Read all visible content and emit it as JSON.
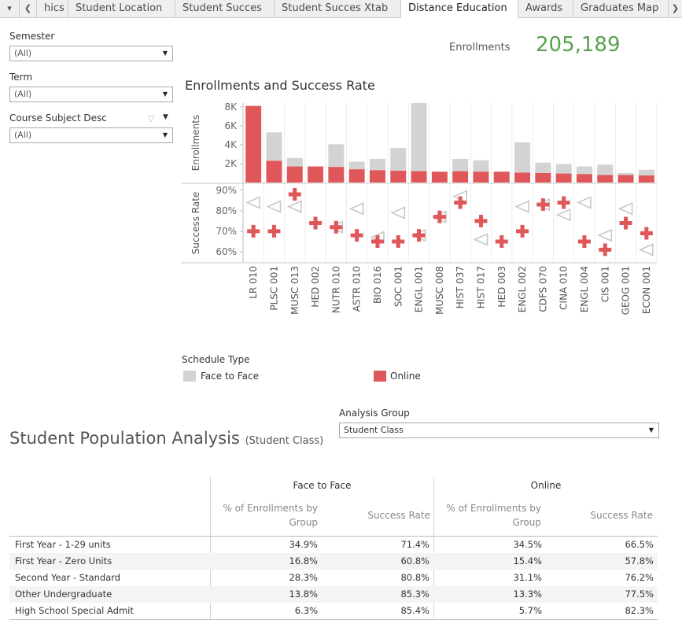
{
  "tabs": {
    "menu_icon": "caret-down-icon",
    "back_icon": "chevron-left-icon",
    "forward_icon": "chevron-right-icon",
    "items": [
      {
        "label": "hics"
      },
      {
        "label": "Student Location"
      },
      {
        "label": "Student Succes"
      },
      {
        "label": "Student Succes Xtab"
      },
      {
        "label": "Distance Education"
      },
      {
        "label": "Awards"
      },
      {
        "label": "Graduates Map"
      }
    ],
    "active": "Distance Education"
  },
  "filters": {
    "semester": {
      "label": "Semester",
      "value": "(All)"
    },
    "term": {
      "label": "Term",
      "value": "(All)"
    },
    "course_subject": {
      "label": "Course Subject Desc",
      "value": "(All)"
    }
  },
  "kpi": {
    "label": "Enrollments",
    "value": "205,189",
    "color": "#59a14f"
  },
  "chart_data": {
    "type": "bar",
    "title": "Enrollments and Success Rate",
    "categories": [
      "LR 010",
      "PLSC 001",
      "MUSC 013",
      "HED 002",
      "NUTR 010",
      "ASTR 010",
      "BIO 016",
      "SOC 001",
      "ENGL 001",
      "MUSC 008",
      "HIST 037",
      "HIST 017",
      "HED 003",
      "ENGL 002",
      "CDFS 070",
      "CINA 010",
      "ENGL 004",
      "CIS 001",
      "GEOG 001",
      "ECON 001"
    ],
    "enrollments": {
      "ylabel": "Enrollments",
      "yticks": [
        "2K",
        "4K",
        "6K",
        "8K"
      ],
      "ylim": [
        0,
        8400
      ],
      "series": [
        {
          "name": "Online",
          "values": [
            8100,
            2300,
            1700,
            1700,
            1650,
            1400,
            1300,
            1250,
            1200,
            1150,
            1200,
            1150,
            1150,
            1050,
            1000,
            950,
            900,
            800,
            800,
            750
          ]
        },
        {
          "name": "Face to Face",
          "values": [
            0,
            3000,
            900,
            0,
            2400,
            800,
            1200,
            2400,
            7200,
            0,
            1300,
            1200,
            0,
            3200,
            1100,
            1000,
            800,
            1100,
            200,
            600
          ]
        }
      ]
    },
    "success_rate": {
      "ylabel": "Success Rate",
      "yticks": [
        "60%",
        "70%",
        "80%",
        "90%"
      ],
      "ylim": [
        55,
        93
      ],
      "series": [
        {
          "name": "Online",
          "marker": "plus",
          "values": [
            70,
            70,
            88,
            74,
            72,
            68,
            65,
            65,
            68,
            77,
            84,
            75,
            65,
            70,
            83,
            84,
            65,
            61,
            74,
            69
          ]
        },
        {
          "name": "Face to Face",
          "marker": "triangle-left",
          "values": [
            84,
            82,
            82,
            null,
            72,
            81,
            67,
            79,
            68,
            77,
            87,
            66,
            null,
            82,
            83,
            78,
            84,
            68,
            81,
            61
          ]
        }
      ]
    }
  },
  "legend": {
    "title": "Schedule Type",
    "items": [
      {
        "label": "Face to Face",
        "color": "#d3d3d3"
      },
      {
        "label": "Online",
        "color": "#e05759"
      }
    ]
  },
  "analysis_group": {
    "label": "Analysis Group",
    "value": "Student Class"
  },
  "spa": {
    "title": "Student Population Analysis",
    "subtitle": "(Student Class)",
    "groups": [
      "Face to Face",
      "Online"
    ],
    "col_pct": "% of Enrollments by Group",
    "col_rate": "Success Rate",
    "rows": [
      {
        "label": "First Year - 1-29 units",
        "values": [
          "34.9%",
          "71.4%",
          "34.5%",
          "66.5%"
        ]
      },
      {
        "label": "First Year - Zero Units",
        "values": [
          "16.8%",
          "60.8%",
          "15.4%",
          "57.8%"
        ]
      },
      {
        "label": "Second Year - Standard",
        "values": [
          "28.3%",
          "80.8%",
          "31.1%",
          "76.2%"
        ]
      },
      {
        "label": "Other Undergraduate",
        "values": [
          "13.8%",
          "85.3%",
          "13.3%",
          "77.5%"
        ]
      },
      {
        "label": "High School Special Admit",
        "values": [
          "6.3%",
          "85.4%",
          "5.7%",
          "82.3%"
        ]
      }
    ]
  }
}
